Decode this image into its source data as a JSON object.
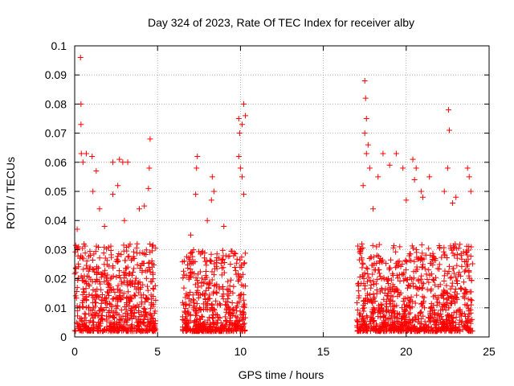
{
  "chart_data": {
    "type": "scatter",
    "title": "Day 324 of 2023, Rate Of TEC Index for receiver alby",
    "xlabel": "GPS time / hours",
    "ylabel": "ROTI / TECUs",
    "xlim": [
      0,
      25
    ],
    "ylim": [
      0,
      0.1
    ],
    "xticks": [
      0,
      5,
      10,
      15,
      20,
      25
    ],
    "xtick_labels": [
      "0",
      "5",
      "10",
      "15",
      "20",
      "25"
    ],
    "yticks": [
      0,
      0.01,
      0.02,
      0.03,
      0.04,
      0.05,
      0.06,
      0.07,
      0.08,
      0.09,
      0.1
    ],
    "ytick_labels": [
      "0",
      "0.01",
      "0.02",
      "0.03",
      "0.04",
      "0.05",
      "0.06",
      "0.07",
      "0.08",
      "0.09",
      "0.1"
    ],
    "grid": true,
    "marker": "plus",
    "colors": {
      "points": "#ff0000",
      "grid": "#a0a0a0",
      "axes": "#000000"
    },
    "data_segments": [
      {
        "name": "segment-1",
        "x_range": [
          0.0,
          4.9
        ],
        "typical_max": 0.03,
        "peak_values": [
          [
            0.35,
            0.096
          ],
          [
            0.38,
            0.08
          ],
          [
            0.38,
            0.073
          ],
          [
            0.4,
            0.063
          ],
          [
            0.7,
            0.063
          ],
          [
            0.5,
            0.06
          ],
          [
            1.05,
            0.062
          ],
          [
            1.3,
            0.057
          ],
          [
            1.1,
            0.05
          ],
          [
            1.5,
            0.044
          ],
          [
            2.3,
            0.06
          ],
          [
            2.7,
            0.061
          ],
          [
            2.3,
            0.049
          ],
          [
            2.9,
            0.06
          ],
          [
            3.2,
            0.06
          ],
          [
            2.6,
            0.052
          ],
          [
            4.55,
            0.068
          ],
          [
            4.5,
            0.058
          ],
          [
            4.45,
            0.051
          ],
          [
            3.9,
            0.044
          ],
          [
            4.2,
            0.045
          ],
          [
            0.15,
            0.037
          ],
          [
            1.8,
            0.038
          ],
          [
            3.0,
            0.04
          ]
        ]
      },
      {
        "name": "segment-2",
        "x_range": [
          6.5,
          10.3
        ],
        "typical_max": 0.028,
        "peak_values": [
          [
            7.4,
            0.062
          ],
          [
            7.35,
            0.058
          ],
          [
            7.3,
            0.049
          ],
          [
            8.3,
            0.055
          ],
          [
            8.4,
            0.05
          ],
          [
            8.25,
            0.047
          ],
          [
            9.9,
            0.075
          ],
          [
            10.2,
            0.08
          ],
          [
            10.1,
            0.073
          ],
          [
            10.3,
            0.076
          ],
          [
            9.95,
            0.07
          ],
          [
            9.9,
            0.062
          ],
          [
            10.0,
            0.058
          ],
          [
            10.1,
            0.055
          ],
          [
            10.2,
            0.049
          ],
          [
            8.0,
            0.04
          ],
          [
            9.0,
            0.038
          ],
          [
            7.0,
            0.035
          ]
        ]
      },
      {
        "name": "segment-3",
        "x_range": [
          17.0,
          24.0
        ],
        "typical_max": 0.03,
        "peak_values": [
          [
            17.5,
            0.088
          ],
          [
            17.55,
            0.082
          ],
          [
            17.6,
            0.075
          ],
          [
            17.5,
            0.07
          ],
          [
            17.7,
            0.066
          ],
          [
            17.6,
            0.063
          ],
          [
            17.8,
            0.058
          ],
          [
            17.4,
            0.052
          ],
          [
            18.6,
            0.063
          ],
          [
            18.3,
            0.055
          ],
          [
            19.0,
            0.059
          ],
          [
            19.4,
            0.063
          ],
          [
            19.8,
            0.058
          ],
          [
            20.4,
            0.061
          ],
          [
            20.5,
            0.054
          ],
          [
            20.6,
            0.058
          ],
          [
            20.9,
            0.05
          ],
          [
            21.0,
            0.048
          ],
          [
            21.4,
            0.055
          ],
          [
            22.3,
            0.05
          ],
          [
            22.55,
            0.078
          ],
          [
            22.6,
            0.071
          ],
          [
            22.5,
            0.058
          ],
          [
            23.0,
            0.048
          ],
          [
            23.7,
            0.058
          ],
          [
            23.8,
            0.055
          ],
          [
            23.9,
            0.05
          ],
          [
            22.8,
            0.046
          ],
          [
            20.0,
            0.047
          ],
          [
            18.0,
            0.044
          ]
        ]
      }
    ]
  }
}
